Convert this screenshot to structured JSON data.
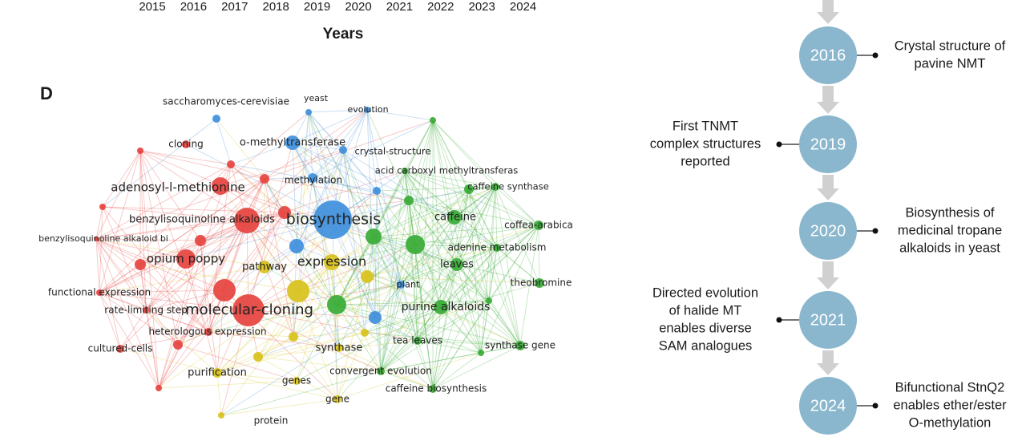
{
  "top_axis": {
    "ticks": [
      "2015",
      "2016",
      "2017",
      "2018",
      "2019",
      "2020",
      "2021",
      "2022",
      "2023",
      "2024"
    ],
    "label": "Years"
  },
  "panel_label": "D",
  "network": {
    "nodes": [
      "saccharomyces-cerevisiae",
      "yeast",
      "evolution",
      "cloning",
      "o-methyltransferase",
      "crystal-structure",
      "methylation",
      "acid carboxyl methyltransferas",
      "caffeine synthase",
      "adenosyl-l-methionine",
      "benzylisoquinoline alkaloids",
      "biosynthesis",
      "caffeine",
      "coffea-arabica",
      "benzylisoquinoline alkaloid bi",
      "opium poppy",
      "expression",
      "adenine metabolism",
      "pathway",
      "leaves",
      "plant",
      "theobromine",
      "functional expression",
      "rate-limiting step",
      "molecular-cloning",
      "purine alkaloids",
      "heterologous expression",
      "cultured-cells",
      "tea leaves",
      "synthase gene",
      "synthase",
      "purification",
      "convergent evolution",
      "genes",
      "caffeine biosynthesis",
      "gene",
      "protein"
    ]
  },
  "timeline": {
    "events": [
      {
        "year": "2016",
        "lines": [
          "Crystal structure of",
          "pavine NMT"
        ]
      },
      {
        "year": "2019",
        "lines": [
          "First  TNMT",
          "complex structures",
          "reported"
        ]
      },
      {
        "year": "2020",
        "lines": [
          "Biosynthesis of",
          "medicinal tropane",
          "alkaloids in yeast"
        ]
      },
      {
        "year": "2021",
        "lines": [
          "Directed evolution",
          "of halide MT",
          "enables diverse",
          "SAM analogues"
        ]
      },
      {
        "year": "2024",
        "lines": [
          "Bifunctional StnQ2",
          "enables ether/ester",
          "O-methylation"
        ]
      }
    ]
  }
}
